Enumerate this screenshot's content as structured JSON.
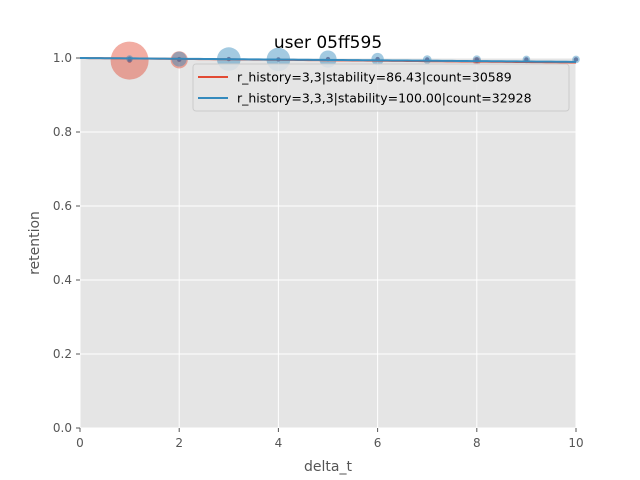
{
  "chart_data": {
    "type": "scatter",
    "title": "user 05ff595",
    "xlabel": "delta_t",
    "ylabel": "retention",
    "xlim": [
      0,
      10
    ],
    "ylim": [
      0,
      1.0
    ],
    "xticks": [
      0,
      2,
      4,
      6,
      8,
      10
    ],
    "yticks": [
      0.0,
      0.2,
      0.4,
      0.6,
      0.8,
      1.0
    ],
    "xtick_labels": [
      "0",
      "2",
      "4",
      "6",
      "8",
      "10"
    ],
    "ytick_labels": [
      "0.0",
      "0.2",
      "0.4",
      "0.6",
      "0.8",
      "1.0"
    ],
    "grid": true,
    "legend_position": "top-right",
    "series": [
      {
        "name": "r_history=3,3|stability=86.43|count=30589",
        "color": "#E24A33",
        "curve_stability": 86.43,
        "points": [
          {
            "x": 1,
            "y": 0.993,
            "weight": 1.0
          },
          {
            "x": 2,
            "y": 0.995,
            "weight": 0.35
          },
          {
            "x": 8,
            "y": 0.992,
            "weight": 0.06
          }
        ]
      },
      {
        "name": "r_history=3,3,3|stability=100.00|count=32928",
        "color": "#348ABD",
        "curve_stability": 100.0,
        "points": [
          {
            "x": 1,
            "y": 0.998,
            "weight": 0.03
          },
          {
            "x": 2,
            "y": 0.997,
            "weight": 0.28
          },
          {
            "x": 3,
            "y": 0.997,
            "weight": 0.55
          },
          {
            "x": 4,
            "y": 0.996,
            "weight": 0.55
          },
          {
            "x": 5,
            "y": 0.997,
            "weight": 0.35
          },
          {
            "x": 6,
            "y": 0.997,
            "weight": 0.2
          },
          {
            "x": 7,
            "y": 0.996,
            "weight": 0.08
          },
          {
            "x": 8,
            "y": 0.996,
            "weight": 0.07
          },
          {
            "x": 9,
            "y": 0.996,
            "weight": 0.05
          },
          {
            "x": 10,
            "y": 0.996,
            "weight": 0.05
          }
        ]
      }
    ]
  }
}
